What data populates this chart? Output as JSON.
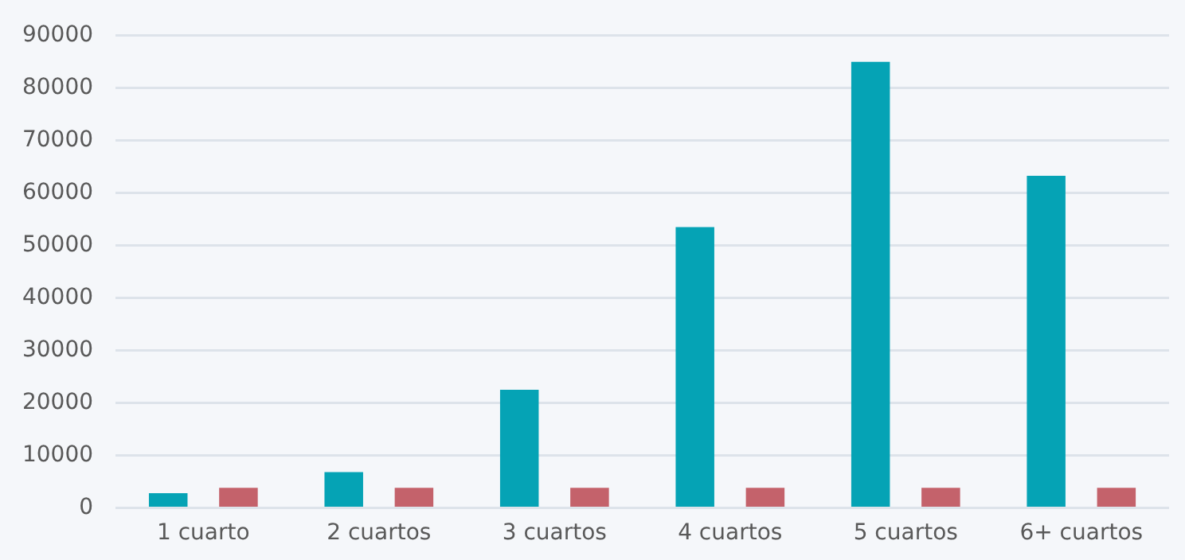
{
  "chart_data": {
    "type": "bar",
    "categories": [
      "1 cuarto",
      "2 cuartos",
      "3 cuartos",
      "4 cuartos",
      "5 cuartos",
      "6+ cuartos"
    ],
    "series": [
      {
        "color": "#05a3b5",
        "values": [
          2800,
          6800,
          22500,
          53500,
          85000,
          63300
        ]
      },
      {
        "color": "#c4626b",
        "values": [
          3800,
          3800,
          3800,
          3800,
          3800,
          3800
        ]
      }
    ],
    "ylim": [
      0,
      90000
    ],
    "yticks": [
      0,
      10000,
      20000,
      30000,
      40000,
      50000,
      60000,
      70000,
      80000,
      90000
    ],
    "grid": "y"
  }
}
